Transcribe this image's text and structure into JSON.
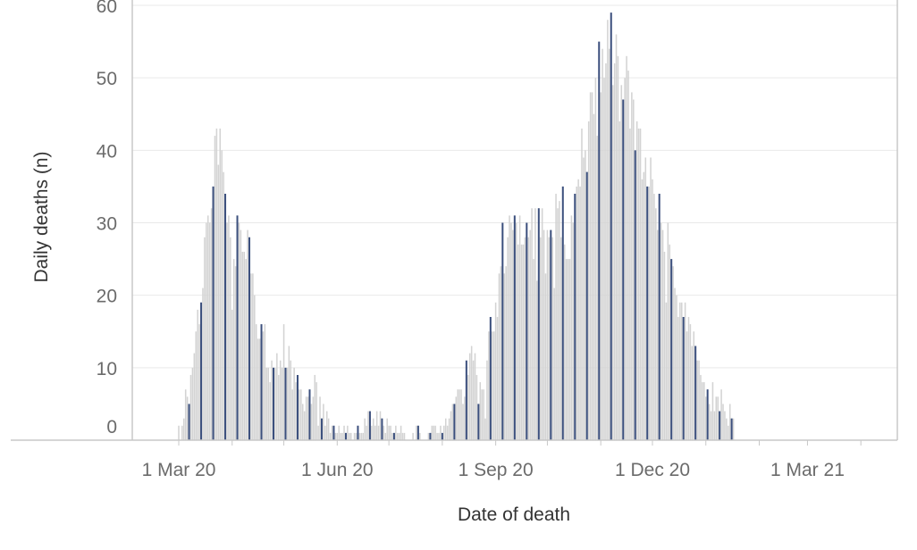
{
  "chart_data": {
    "type": "bar",
    "xlabel": "Date of death",
    "ylabel": "Daily deaths (n)",
    "ylim": [
      0,
      60
    ],
    "y_ticks": [
      0,
      10,
      20,
      30,
      40,
      50,
      60
    ],
    "x_ticks": [
      {
        "date": "2020-03-01",
        "label": "1 Mar 20"
      },
      {
        "date": "2020-06-01",
        "label": "1 Jun 20"
      },
      {
        "date": "2020-09-01",
        "label": "1 Sep 20"
      },
      {
        "date": "2020-12-01",
        "label": "1 Dec 20"
      },
      {
        "date": "2021-03-01",
        "label": "1 Mar 21"
      }
    ],
    "x_range": [
      "2020-02-01",
      "2021-04-01"
    ],
    "grid": true,
    "colors": {
      "bar": "#d3d3d3",
      "weekly_marker": "#3b4f7d",
      "grid": "#e9e9e9",
      "axis": "#c8c8c8"
    },
    "series": [
      {
        "start_date": "2020-03-01",
        "values": [
          2,
          0,
          2,
          3,
          7,
          6,
          5,
          9,
          10,
          12,
          15,
          18,
          16,
          19,
          21,
          28,
          30,
          31,
          30,
          32,
          35,
          42,
          43,
          38,
          43,
          40,
          37,
          34,
          30,
          31,
          28,
          18,
          25,
          24,
          31,
          30,
          29,
          26,
          26,
          25,
          29,
          28,
          23,
          23,
          20,
          16,
          14,
          14,
          16,
          15,
          16,
          10,
          10,
          8,
          11,
          10,
          10,
          12,
          9,
          11,
          10,
          16,
          10,
          10,
          13,
          11,
          7,
          10,
          8,
          9,
          7,
          7,
          5,
          4,
          6,
          6,
          7,
          5,
          6,
          9,
          8,
          2,
          6,
          3,
          5,
          2,
          4,
          3,
          1,
          2,
          2,
          1,
          1,
          2,
          1,
          1,
          2,
          1,
          2,
          1,
          1,
          0,
          1,
          1,
          2,
          1,
          1,
          1,
          3,
          2,
          4,
          4,
          2,
          3,
          2,
          4,
          2,
          4,
          3,
          2,
          1,
          3,
          2,
          2,
          1,
          1,
          2,
          1,
          1,
          2,
          1,
          1,
          0,
          0,
          0,
          0,
          1,
          0,
          2,
          2,
          1,
          0,
          0,
          0,
          0,
          1,
          1,
          2,
          2,
          2,
          1,
          1,
          2,
          1,
          2,
          3,
          2,
          3,
          4,
          5,
          5,
          6,
          7,
          7,
          7,
          5,
          6,
          11,
          9,
          12,
          13,
          11,
          12,
          9,
          5,
          8,
          7,
          7,
          3,
          11,
          15,
          17,
          15,
          15,
          19,
          17,
          23,
          24,
          30,
          23,
          24,
          28,
          31,
          30,
          29,
          31,
          30,
          27,
          31,
          27,
          27,
          28,
          30,
          28,
          29,
          32,
          25,
          32,
          22,
          32,
          28,
          32,
          29,
          23,
          29,
          28,
          29,
          28,
          21,
          34,
          32,
          33,
          28,
          35,
          27,
          25,
          25,
          25,
          31,
          30,
          34,
          35,
          36,
          35,
          43,
          39,
          40,
          37,
          44,
          48,
          48,
          45,
          50,
          42,
          55,
          48,
          54,
          50,
          52,
          58,
          54,
          59,
          49,
          52,
          56,
          53,
          44,
          49,
          47,
          50,
          53,
          51,
          43,
          48,
          47,
          40,
          44,
          43,
          43,
          36,
          37,
          39,
          35,
          35,
          39,
          36,
          34,
          32,
          29,
          34,
          30,
          29,
          26,
          19,
          30,
          27,
          25,
          24,
          21,
          20,
          17,
          19,
          19,
          17,
          19,
          15,
          17,
          16,
          13,
          15,
          13,
          11,
          11,
          9,
          8,
          8,
          6,
          7,
          5,
          4,
          8,
          4,
          6,
          6,
          4,
          7,
          5,
          4,
          3,
          2,
          5,
          3,
          3
        ]
      }
    ]
  }
}
